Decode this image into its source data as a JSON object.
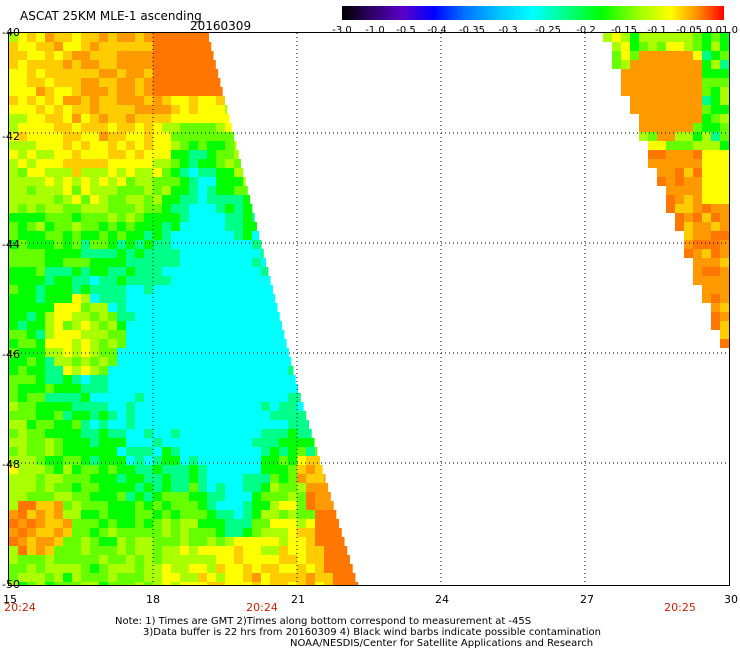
{
  "title": "ASCAT 25KM MLE-1 ascending",
  "date": "20160309",
  "colorbar": {
    "labels": [
      "-3.0",
      "-1.0",
      "-0.5",
      "-0.4",
      "-0.35",
      "-0.3",
      "-0.25",
      "-0.2",
      "-0.15",
      "-0.1",
      "-0.05",
      "0.0",
      "1.0"
    ],
    "colors": [
      "#000000",
      "#4b0082",
      "#0000ff",
      "#007fff",
      "#00bfff",
      "#00ffff",
      "#00ff7f",
      "#00ff00",
      "#7fff00",
      "#ffff00",
      "#ffa500",
      "#ff4500",
      "#ff0000"
    ]
  },
  "axes": {
    "x_ticks": [
      "15",
      "18",
      "21",
      "24",
      "27",
      "30"
    ],
    "y_ticks": [
      "-40",
      "-42",
      "-44",
      "-46",
      "-48",
      "-50"
    ],
    "x_range": [
      15,
      30
    ],
    "y_range": [
      -50,
      -40
    ],
    "grid": true
  },
  "time_labels": [
    "20:24",
    "20:24",
    "20:25"
  ],
  "notes": [
    "Note: 1) Times are GMT 2)Times along bottom correspond to measurement at -45S",
    "3)Data buffer is 22 hrs from 20160309 4) Black wind barbs indicate possible contamination",
    "NOAA/NESDIS/Center for Satellite Applications and Research"
  ]
}
